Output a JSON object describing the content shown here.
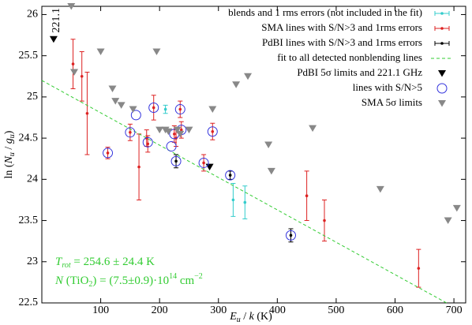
{
  "chart_data": {
    "type": "scatter",
    "x_label": {
      "main": "E",
      "sub": "u",
      "rest": " / ",
      "k": "k",
      "unit": " (K)"
    },
    "y_label": {
      "fn": "ln (",
      "n": "N",
      "nsub": "u",
      "slash": " / ",
      "g": "g",
      "gsub": "u",
      "close": ")"
    },
    "xlim": [
      0,
      720
    ],
    "xticks": [
      100,
      200,
      300,
      400,
      500,
      600,
      700
    ],
    "ylim": [
      22.5,
      26.1
    ],
    "yticks": [
      22.5,
      23,
      23.5,
      24,
      24.5,
      25,
      25.5,
      26
    ],
    "grid": false,
    "legend": "top-right",
    "annotations": {
      "trot": {
        "sym": "T",
        "sub": "rot",
        "text": " = 254.6 ± 24.4 K"
      },
      "ncol": {
        "sym": "N",
        "p1": " (TiO",
        "sub": "2",
        "p2": ") = (7.5±0.9)·10",
        "sup": "14",
        "p3": " cm",
        "sup2": "−2"
      },
      "limit_label": "221.1"
    },
    "series": [
      {
        "name": "blends and 1 rms errors (not included in the fit)",
        "type": "errorbar",
        "color": "#33cccc",
        "x": [
          210,
          325,
          345
        ],
        "values": [
          24.85,
          23.75,
          23.72
        ],
        "errors": [
          0.05,
          0.2,
          0.2
        ]
      },
      {
        "name": "SMA lines with S/N>3 and 1rms errors",
        "type": "errorbar",
        "color": "#dd2222",
        "x": [
          53,
          68,
          77,
          112,
          150,
          165,
          178,
          180,
          190,
          225,
          228,
          235,
          237,
          275,
          290,
          450,
          480,
          640
        ],
        "values": [
          25.4,
          25.25,
          24.8,
          24.32,
          24.57,
          24.15,
          24.5,
          24.43,
          24.87,
          24.55,
          24.5,
          24.85,
          24.6,
          24.2,
          24.58,
          23.8,
          23.5,
          22.92
        ],
        "errors": [
          0.3,
          0.3,
          0.5,
          0.07,
          0.1,
          0.4,
          0.1,
          0.1,
          0.15,
          0.1,
          0.1,
          0.1,
          0.1,
          0.1,
          0.1,
          0.3,
          0.25,
          0.23
        ]
      },
      {
        "name": "PdBI lines with S/N>3 and 1rms errors",
        "type": "errorbar",
        "color": "#000000",
        "x": [
          228,
          320,
          423
        ],
        "values": [
          24.22,
          24.05,
          23.32
        ],
        "errors": [
          0.08,
          0.05,
          0.08
        ]
      },
      {
        "name": "fit to all detected nonblending lines",
        "type": "line",
        "color": "#33cc33",
        "x": [
          0,
          690
        ],
        "values": [
          25.2,
          22.49
        ]
      },
      {
        "name": "PdBI 5σ limits and 221.1 GHz",
        "type": "triangle",
        "color": "#000000",
        "x": [
          20,
          285
        ],
        "values": [
          25.7,
          24.15
        ]
      },
      {
        "name": "lines with S/N>5",
        "type": "circle",
        "color": "#3333dd",
        "x": [
          112,
          150,
          160,
          180,
          190,
          220,
          225,
          228,
          235,
          237,
          275,
          290,
          320,
          423
        ],
        "values": [
          24.32,
          24.57,
          24.78,
          24.45,
          24.87,
          24.4,
          24.55,
          24.22,
          24.85,
          24.6,
          24.2,
          24.58,
          24.05,
          23.32
        ]
      },
      {
        "name": "SMA 5σ limits",
        "type": "triangle",
        "color": "#888888",
        "x": [
          50,
          55,
          100,
          120,
          125,
          135,
          155,
          195,
          200,
          210,
          215,
          230,
          235,
          250,
          290,
          330,
          350,
          385,
          390,
          460,
          575,
          690,
          705
        ],
        "values": [
          26.1,
          25.3,
          25.55,
          25.1,
          24.95,
          24.9,
          24.85,
          25.55,
          24.6,
          24.6,
          24.58,
          24.6,
          24.55,
          24.6,
          24.85,
          25.15,
          25.25,
          24.42,
          24.1,
          24.62,
          23.88,
          23.5,
          23.65
        ]
      }
    ]
  }
}
